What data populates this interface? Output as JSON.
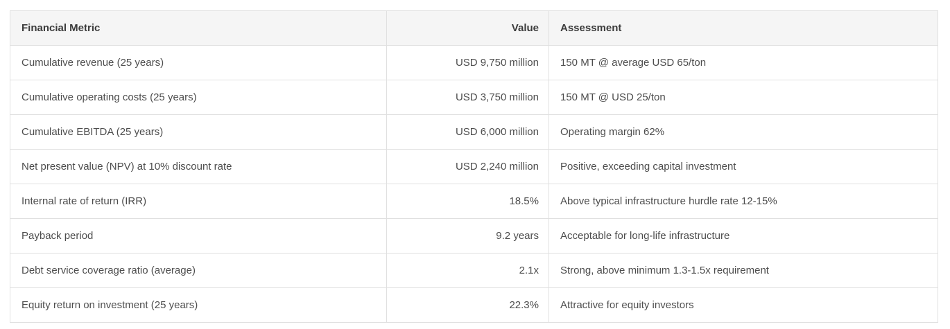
{
  "colors": {
    "page_bg": "#ffffff",
    "header_bg": "#f5f5f5",
    "border": "#e0e0e0",
    "header_text": "#3b3b3b",
    "body_text": "#4d4d4d"
  },
  "table": {
    "columns": [
      {
        "label": "Financial Metric",
        "align": "left"
      },
      {
        "label": "Value",
        "align": "right"
      },
      {
        "label": "Assessment",
        "align": "left"
      }
    ],
    "rows": [
      {
        "metric": "Cumulative revenue (25 years)",
        "value": "USD 9,750 million",
        "assessment": "150 MT @ average USD 65/ton"
      },
      {
        "metric": "Cumulative operating costs (25 years)",
        "value": "USD 3,750 million",
        "assessment": "150 MT @ USD 25/ton"
      },
      {
        "metric": "Cumulative EBITDA (25 years)",
        "value": "USD 6,000 million",
        "assessment": "Operating margin 62%"
      },
      {
        "metric": "Net present value (NPV) at 10% discount rate",
        "value": "USD 2,240 million",
        "assessment": "Positive, exceeding capital investment"
      },
      {
        "metric": "Internal rate of return (IRR)",
        "value": "18.5%",
        "assessment": "Above typical infrastructure hurdle rate 12-15%"
      },
      {
        "metric": "Payback period",
        "value": "9.2 years",
        "assessment": "Acceptable for long-life infrastructure"
      },
      {
        "metric": "Debt service coverage ratio (average)",
        "value": "2.1x",
        "assessment": "Strong, above minimum 1.3-1.5x requirement"
      },
      {
        "metric": "Equity return on investment (25 years)",
        "value": "22.3%",
        "assessment": "Attractive for equity investors"
      }
    ]
  },
  "chart_data": {
    "type": "table",
    "title": "",
    "columns": [
      "Financial Metric",
      "Value",
      "Assessment"
    ],
    "rows": [
      [
        "Cumulative revenue (25 years)",
        "USD 9,750 million",
        "150 MT @ average USD 65/ton"
      ],
      [
        "Cumulative operating costs (25 years)",
        "USD 3,750 million",
        "150 MT @ USD 25/ton"
      ],
      [
        "Cumulative EBITDA (25 years)",
        "USD 6,000 million",
        "Operating margin 62%"
      ],
      [
        "Net present value (NPV) at 10% discount rate",
        "USD 2,240 million",
        "Positive, exceeding capital investment"
      ],
      [
        "Internal rate of return (IRR)",
        "18.5%",
        "Above typical infrastructure hurdle rate 12-15%"
      ],
      [
        "Payback period",
        "9.2 years",
        "Acceptable for long-life infrastructure"
      ],
      [
        "Debt service coverage ratio (average)",
        "2.1x",
        "Strong, above minimum 1.3-1.5x requirement"
      ],
      [
        "Equity return on investment (25 years)",
        "22.3%",
        "Attractive for equity investors"
      ]
    ],
    "layout_hints": {
      "header_background": "#f5f5f5",
      "grid": true,
      "value_column_align": "right"
    }
  }
}
